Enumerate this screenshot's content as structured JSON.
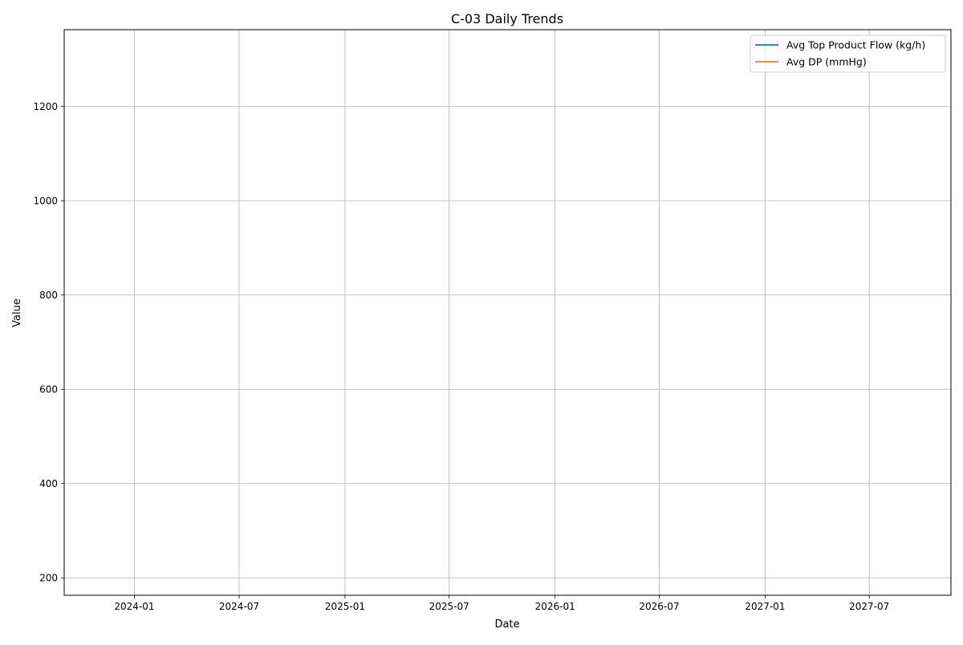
{
  "chart_data": {
    "type": "line",
    "title": "C-03 Daily Trends",
    "xlabel": "Date",
    "ylabel": "Value",
    "x_type": "date",
    "xlim": [
      "2023-09-01",
      "2027-11-20"
    ],
    "ylim": [
      163,
      1363
    ],
    "x_ticks": [
      "2024-01",
      "2024-07",
      "2025-01",
      "2025-07",
      "2026-01",
      "2026-07",
      "2027-01",
      "2027-07"
    ],
    "y_ticks": [
      200,
      400,
      600,
      800,
      1000,
      1200
    ],
    "grid": true,
    "legend_position": "upper-right",
    "series": [
      {
        "name": "Avg Top Product Flow (kg/h)",
        "color": "#1f77b4",
        "x": [],
        "y": []
      },
      {
        "name": "Avg DP (mmHg)",
        "color": "#ff7f0e",
        "x": [],
        "y": []
      }
    ]
  }
}
